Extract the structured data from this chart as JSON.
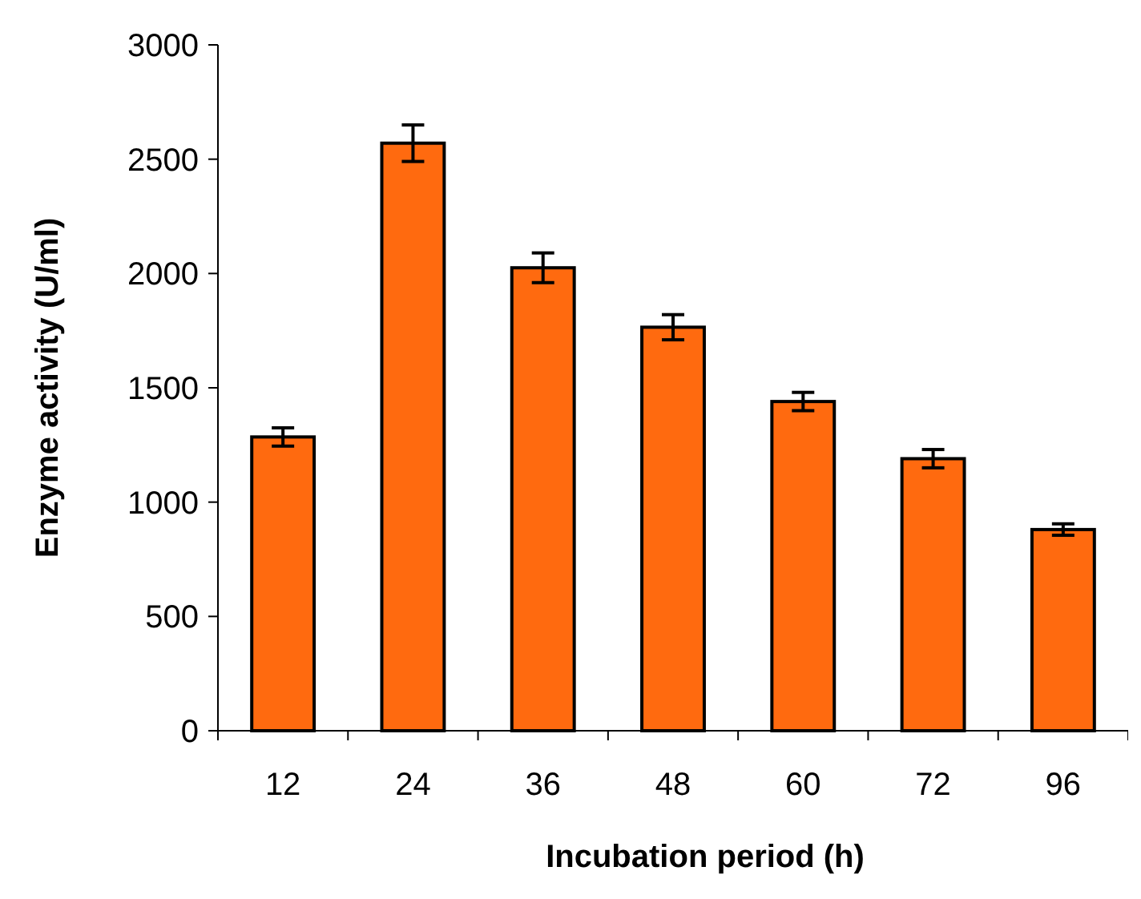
{
  "chart_data": {
    "type": "bar",
    "xlabel": "Incubation period (h)",
    "ylabel": "Enzyme activity (U/ml)",
    "categories": [
      "12",
      "24",
      "36",
      "48",
      "60",
      "72",
      "96"
    ],
    "values": [
      1285,
      2570,
      2025,
      1765,
      1440,
      1190,
      880
    ],
    "errors": [
      40,
      80,
      65,
      55,
      40,
      40,
      25
    ],
    "color": "#ff6a0f",
    "ylim": [
      0,
      3000
    ],
    "yticks": [
      0,
      500,
      1000,
      1500,
      2000,
      2500,
      3000
    ],
    "grid": false
  }
}
